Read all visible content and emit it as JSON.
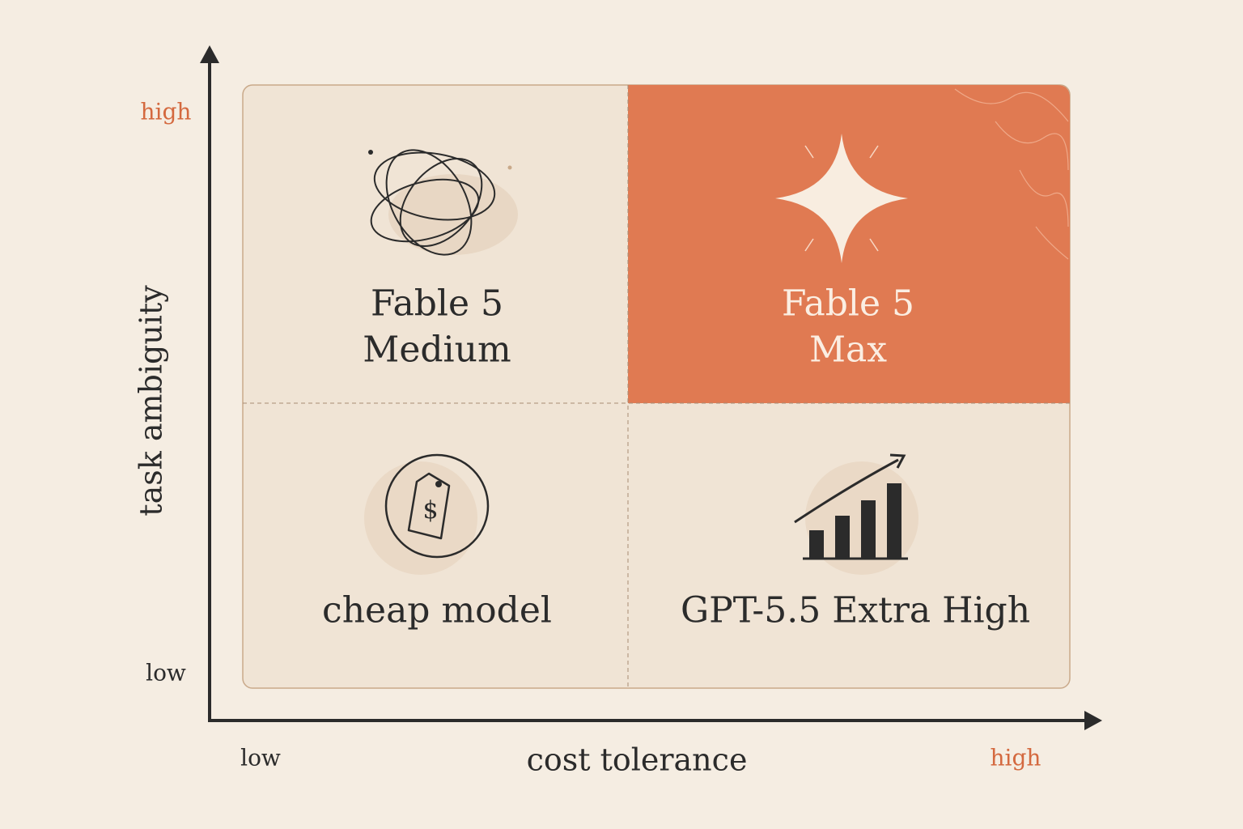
{
  "y_axis": {
    "label": "task ambiguity",
    "low": "low",
    "high": "high"
  },
  "x_axis": {
    "label": "cost tolerance",
    "low": "low",
    "high": "high"
  },
  "quadrants": {
    "top_left": {
      "lines": [
        "Fable 5",
        "Medium"
      ]
    },
    "top_right": {
      "lines": [
        "Fable 5",
        "Max"
      ]
    },
    "bottom_left": {
      "lines": [
        "cheap model"
      ]
    },
    "bottom_right": {
      "lines": [
        "GPT-5.5 Extra High"
      ]
    }
  }
}
